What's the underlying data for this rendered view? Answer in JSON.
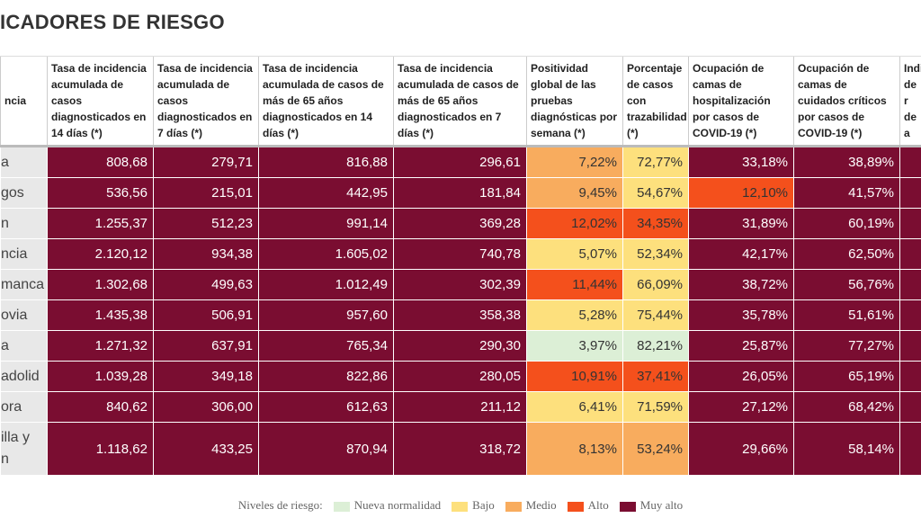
{
  "title": "ICADORES DE RIESGO",
  "table": {
    "headers": [
      "ncia",
      "Tasa de incidencia acumulada de casos diagnosticados en 14 días (*)",
      "Tasa de incidencia acumulada de casos diagnosticados en 7 días (*)",
      "Tasa de incidencia acumulada de casos de más de 65 años diagnosticados en 14 días (*)",
      "Tasa de incidencia acumulada de casos de más de 65 años diagnosticados en 7 días (*)",
      "Positividad global de las pruebas diagnósticas por semana (*)",
      "Porcentaje de casos con trazabilidad (*)",
      "Ocupación de camas de hospitalización por casos de COVID-19 (*)",
      "Ocupación de camas de cuidados críticos por casos de COVID-19 (*)",
      "Indi de r de a"
    ],
    "rows": [
      [
        "a",
        "808,68",
        "279,71",
        "816,88",
        "296,61",
        "7,22%",
        "72,77%",
        "33,18%",
        "38,89%",
        ""
      ],
      [
        "gos",
        "536,56",
        "215,01",
        "442,95",
        "181,84",
        "9,45%",
        "54,67%",
        "12,10%",
        "41,57%",
        ""
      ],
      [
        "n",
        "1.255,37",
        "512,23",
        "991,14",
        "369,28",
        "12,02%",
        "34,35%",
        "31,89%",
        "60,19%",
        ""
      ],
      [
        "ncia",
        "2.120,12",
        "934,38",
        "1.605,02",
        "740,78",
        "5,07%",
        "52,34%",
        "42,17%",
        "62,50%",
        ""
      ],
      [
        "manca",
        "1.302,68",
        "499,63",
        "1.012,49",
        "302,39",
        "11,44%",
        "66,09%",
        "38,72%",
        "56,76%",
        ""
      ],
      [
        "ovia",
        "1.435,38",
        "506,91",
        "957,60",
        "358,38",
        "5,28%",
        "75,44%",
        "35,78%",
        "51,61%",
        ""
      ],
      [
        "a",
        "1.271,32",
        "637,91",
        "765,34",
        "290,30",
        "3,97%",
        "82,21%",
        "25,87%",
        "77,27%",
        ""
      ],
      [
        "adolid",
        "1.039,28",
        "349,18",
        "822,86",
        "280,05",
        "10,91%",
        "37,41%",
        "26,05%",
        "65,19%",
        ""
      ],
      [
        "ora",
        "840,62",
        "306,00",
        "612,63",
        "211,12",
        "6,41%",
        "71,59%",
        "27,12%",
        "68,42%",
        ""
      ],
      [
        "illa y n",
        "1.118,62",
        "433,25",
        "870,94",
        "318,72",
        "8,13%",
        "53,24%",
        "29,66%",
        "58,14%",
        ""
      ]
    ],
    "colors": [
      [
        "#e8e8e8",
        "#7a0d31",
        "#7a0d31",
        "#7a0d31",
        "#7a0d31",
        "#f8ac5e",
        "#fde07d",
        "#7a0d31",
        "#7a0d31",
        "#7a0d31"
      ],
      [
        "#e8e8e8",
        "#7a0d31",
        "#7a0d31",
        "#7a0d31",
        "#7a0d31",
        "#f8ac5e",
        "#fde07d",
        "#f4501c",
        "#7a0d31",
        "#7a0d31"
      ],
      [
        "#e8e8e8",
        "#7a0d31",
        "#7a0d31",
        "#7a0d31",
        "#7a0d31",
        "#f4501c",
        "#f4501c",
        "#7a0d31",
        "#7a0d31",
        "#7a0d31"
      ],
      [
        "#e8e8e8",
        "#7a0d31",
        "#7a0d31",
        "#7a0d31",
        "#7a0d31",
        "#fde07d",
        "#fde07d",
        "#7a0d31",
        "#7a0d31",
        "#7a0d31"
      ],
      [
        "#e8e8e8",
        "#7a0d31",
        "#7a0d31",
        "#7a0d31",
        "#7a0d31",
        "#f4501c",
        "#fde07d",
        "#7a0d31",
        "#7a0d31",
        "#7a0d31"
      ],
      [
        "#e8e8e8",
        "#7a0d31",
        "#7a0d31",
        "#7a0d31",
        "#7a0d31",
        "#fde07d",
        "#fde07d",
        "#7a0d31",
        "#7a0d31",
        "#7a0d31"
      ],
      [
        "#e8e8e8",
        "#7a0d31",
        "#7a0d31",
        "#7a0d31",
        "#7a0d31",
        "#dcefd6",
        "#dcefd6",
        "#7a0d31",
        "#7a0d31",
        "#7a0d31"
      ],
      [
        "#e8e8e8",
        "#7a0d31",
        "#7a0d31",
        "#7a0d31",
        "#7a0d31",
        "#f4501c",
        "#f4501c",
        "#7a0d31",
        "#7a0d31",
        "#7a0d31"
      ],
      [
        "#e8e8e8",
        "#7a0d31",
        "#7a0d31",
        "#7a0d31",
        "#7a0d31",
        "#fde07d",
        "#fde07d",
        "#7a0d31",
        "#7a0d31",
        "#7a0d31"
      ],
      [
        "#e8e8e8",
        "#7a0d31",
        "#7a0d31",
        "#7a0d31",
        "#7a0d31",
        "#f8ac5e",
        "#f8ac5e",
        "#7a0d31",
        "#7a0d31",
        "#7a0d31"
      ]
    ]
  },
  "legend": {
    "label": "Niveles de riesgo:",
    "items": [
      {
        "label": "Nueva normalidad",
        "color": "#dcefd6"
      },
      {
        "label": "Bajo",
        "color": "#fde07d"
      },
      {
        "label": "Medio",
        "color": "#f8ac5e"
      },
      {
        "label": "Alto",
        "color": "#f4501c"
      },
      {
        "label": "Muy alto",
        "color": "#7a0d31"
      }
    ]
  }
}
